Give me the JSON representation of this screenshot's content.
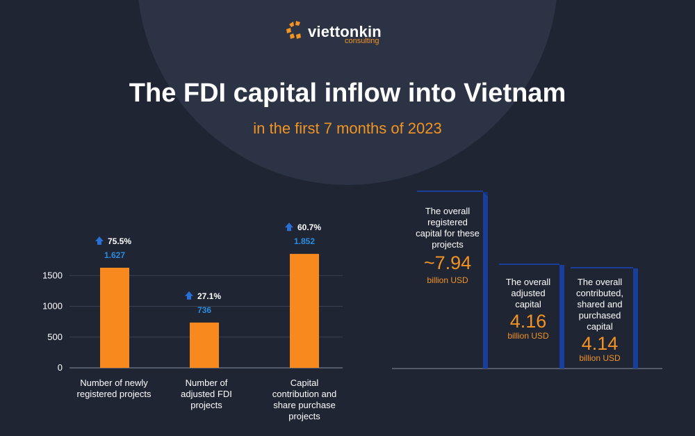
{
  "brand": {
    "name": "viettonkin",
    "sub": "consulting"
  },
  "header": {
    "title": "The FDI capital inflow into Vietnam",
    "subtitle": "in the first 7 months of 2023"
  },
  "colors": {
    "background": "#1f2533",
    "accent": "#f39323",
    "value_blue": "#2a8de0",
    "panel_blue": "#1a3f9b"
  },
  "chart_data": [
    {
      "type": "bar",
      "categories": [
        "Number of newly registered projects",
        "Number of adjusted FDI projects",
        "Capital contribution and share purchase projects"
      ],
      "values": [
        1627,
        736,
        1852
      ],
      "value_labels": [
        "1.627",
        "736",
        "1.852"
      ],
      "growth_labels": [
        "75.5%",
        "27.1%",
        "60.7%"
      ],
      "yticks": [
        "0",
        "500",
        "1000",
        "1500"
      ],
      "ylim": [
        0,
        1900
      ],
      "grid": true,
      "color": "#f7891f"
    },
    {
      "type": "bar",
      "categories": [
        "The overall registered capital for these projects",
        "The overall adjusted capital",
        "The overall contributed, shared and purchased capital"
      ],
      "values": [
        7.94,
        4.16,
        4.14
      ],
      "value_labels": [
        "~7.94",
        "4.16",
        "4.14"
      ],
      "unit": "billion USD"
    }
  ]
}
